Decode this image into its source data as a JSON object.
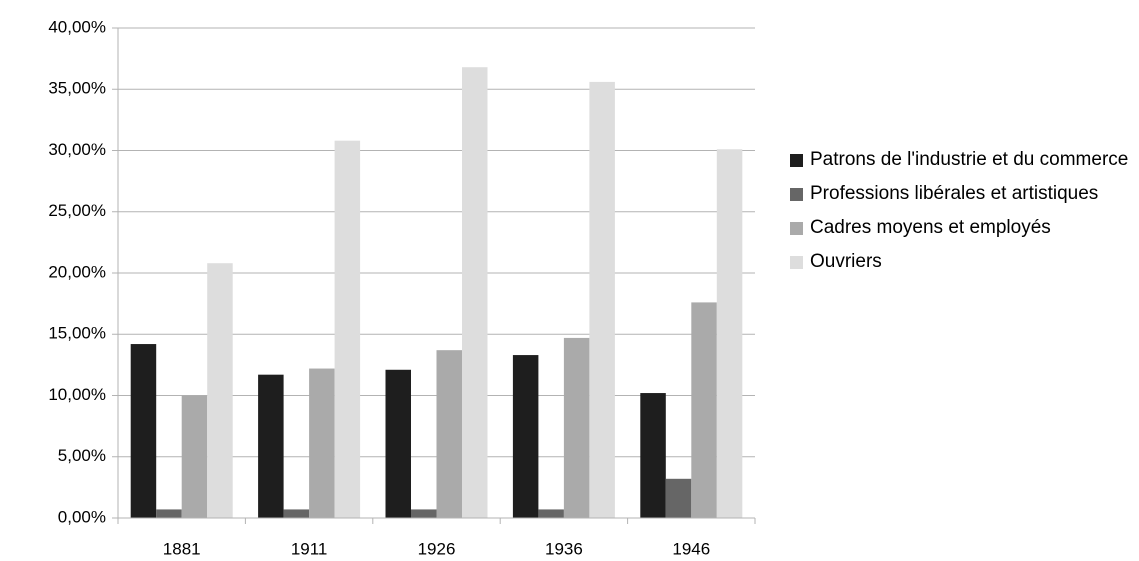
{
  "chart_data": {
    "type": "bar",
    "categories": [
      "1881",
      "1911",
      "1926",
      "1936",
      "1946"
    ],
    "series": [
      {
        "name": "Patrons de l'industrie et du commerce",
        "color": "#1e1e1e",
        "values": [
          14.2,
          11.7,
          12.1,
          13.3,
          10.2
        ]
      },
      {
        "name": "Professions libérales et artistiques",
        "color": "#666666",
        "values": [
          0.7,
          0.7,
          0.7,
          0.7,
          3.2
        ]
      },
      {
        "name": "Cadres moyens et employés",
        "color": "#aaaaaa",
        "values": [
          10.0,
          12.2,
          13.7,
          14.7,
          17.6
        ]
      },
      {
        "name": "Ouvriers",
        "color": "#dddddd",
        "values": [
          20.8,
          30.8,
          36.8,
          35.6,
          30.1
        ]
      }
    ],
    "ylim": [
      0,
      40
    ],
    "yticks": [
      {
        "value": 0,
        "label": "0,00%"
      },
      {
        "value": 5,
        "label": "5,00%"
      },
      {
        "value": 10,
        "label": "10,00%"
      },
      {
        "value": 15,
        "label": "15,00%"
      },
      {
        "value": 20,
        "label": "20,00%"
      },
      {
        "value": 25,
        "label": "25,00%"
      },
      {
        "value": 30,
        "label": "30,00%"
      },
      {
        "value": 35,
        "label": "35,00%"
      },
      {
        "value": 40,
        "label": "40,00%"
      }
    ],
    "grid": true,
    "legend": "right"
  }
}
